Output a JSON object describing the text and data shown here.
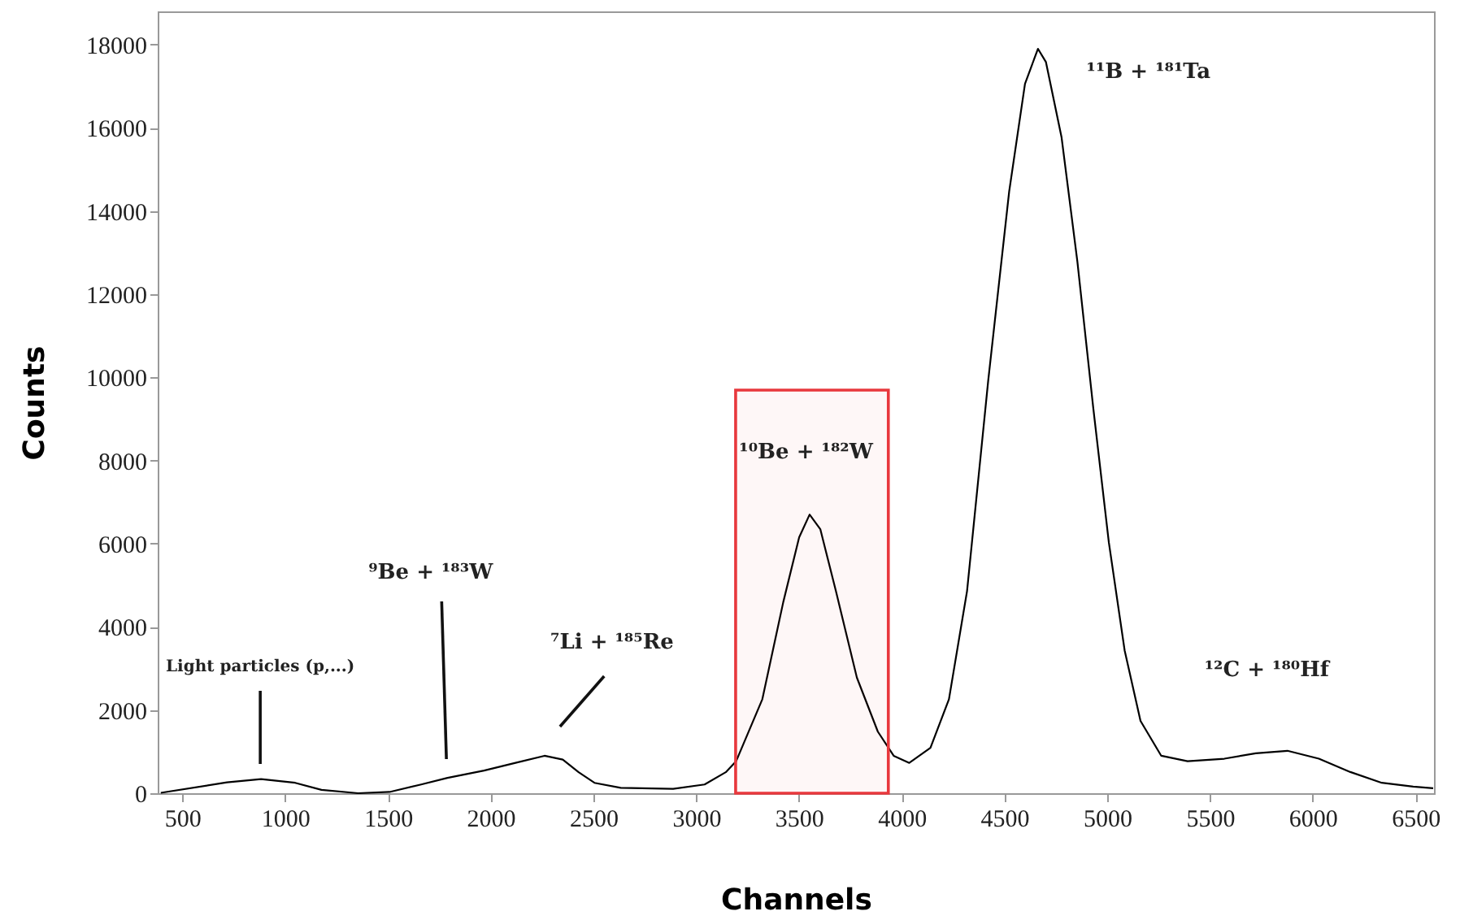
{
  "chart_data": {
    "type": "line",
    "xlabel": "Channels",
    "ylabel": "Counts",
    "x": [
      395,
      717,
      883,
      1049,
      1177,
      1355,
      1508,
      1662,
      1790,
      1968,
      2121,
      2262,
      2351,
      2428,
      2505,
      2633,
      2888,
      3041,
      3144,
      3194,
      3322,
      3424,
      3501,
      3552,
      3604,
      3680,
      3782,
      3884,
      3961,
      4037,
      4140,
      4230,
      4318,
      4421,
      4523,
      4600,
      4663,
      4702,
      4778,
      4855,
      4932,
      5008,
      5085,
      5162,
      5263,
      5391,
      5570,
      5723,
      5877,
      6030,
      6183,
      6336,
      6489,
      6586
    ],
    "series": [
      {
        "color": "#000000",
        "values": [
          10,
          260,
          340,
          250,
          80,
          0,
          30,
          210,
          370,
          545,
          730,
          900,
          810,
          505,
          250,
          130,
          105,
          210,
          505,
          765,
          2260,
          4600,
          6150,
          6700,
          6350,
          4860,
          2780,
          1480,
          900,
          730,
          1090,
          2260,
          4860,
          9920,
          14470,
          17060,
          17900,
          17580,
          15770,
          12780,
          9270,
          6030,
          3430,
          1740,
          900,
          770,
          830,
          960,
          1020,
          830,
          510,
          250,
          160,
          120
        ]
      }
    ],
    "xlim": [
      380,
      6590
    ],
    "ylim": [
      0,
      18800
    ],
    "xticks": [
      500,
      1000,
      1500,
      2000,
      2500,
      3000,
      3500,
      4000,
      4500,
      5000,
      5500,
      6000,
      6500
    ],
    "yticks": [
      0,
      2000,
      4000,
      6000,
      8000,
      10000,
      12000,
      14000,
      16000,
      18000
    ],
    "grid": false,
    "marker": "none",
    "line_style": "solid",
    "bands": [
      {
        "axis": "x",
        "from": 3192,
        "to": 3935,
        "color": "#e8383d"
      }
    ],
    "annotations": [
      "Light particles (p,...)",
      "⁹Be + ¹⁸³W",
      "⁷Li + ¹⁸⁵Re",
      "¹⁰Be + ¹⁸²W",
      "¹¹B + ¹⁸¹Ta",
      "¹²C + ¹⁸⁰Hf"
    ]
  }
}
